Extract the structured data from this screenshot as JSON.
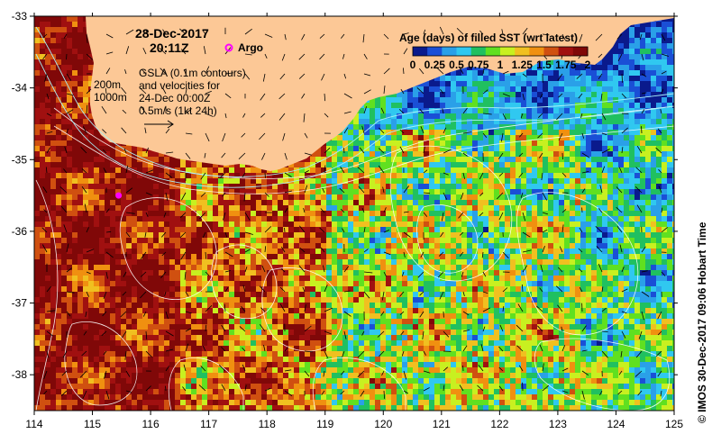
{
  "map": {
    "datetime_line1": "28-Dec-2017",
    "datetime_line2": "20:11Z",
    "argo_label": "Argo",
    "depth_label_200": "200m",
    "depth_label_1000": "1000m",
    "gsla_lines": [
      "GSLA (0.1m contours)",
      "and velocities for",
      "24-Dec 00:00Z",
      "0.5m/s (1kt 24h)"
    ],
    "x_ticks": [
      "114",
      "115",
      "116",
      "117",
      "118",
      "119",
      "120",
      "121",
      "122",
      "123",
      "124",
      "125"
    ],
    "y_ticks": [
      "-33",
      "-34",
      "-35",
      "-36",
      "-37",
      "-38"
    ],
    "x_range": [
      114,
      125
    ],
    "y_range": [
      -38.5,
      -33
    ],
    "argo_float": {
      "lon": 115.45,
      "lat": -35.5
    },
    "credit": "© IMOS 30-Dec-2017 09:06 Hobart Time"
  },
  "colorbar": {
    "title": "Age (days) of filled SST (wrt latest)",
    "range": [
      0,
      2
    ],
    "ticks": [
      "0",
      "0.25",
      "0.5",
      "0.75",
      "1",
      "1.25",
      "1.5",
      "1.75",
      "2"
    ],
    "colors": [
      "#0a1a8c",
      "#1a4fd6",
      "#2aa0e8",
      "#30c8f0",
      "#20c060",
      "#60e020",
      "#c8f020",
      "#f0c020",
      "#f09010",
      "#d05010",
      "#a01010",
      "#800808"
    ]
  },
  "colors": {
    "land": "#fcc896",
    "argo": "#ff00ff",
    "contour": "#ffffff"
  }
}
